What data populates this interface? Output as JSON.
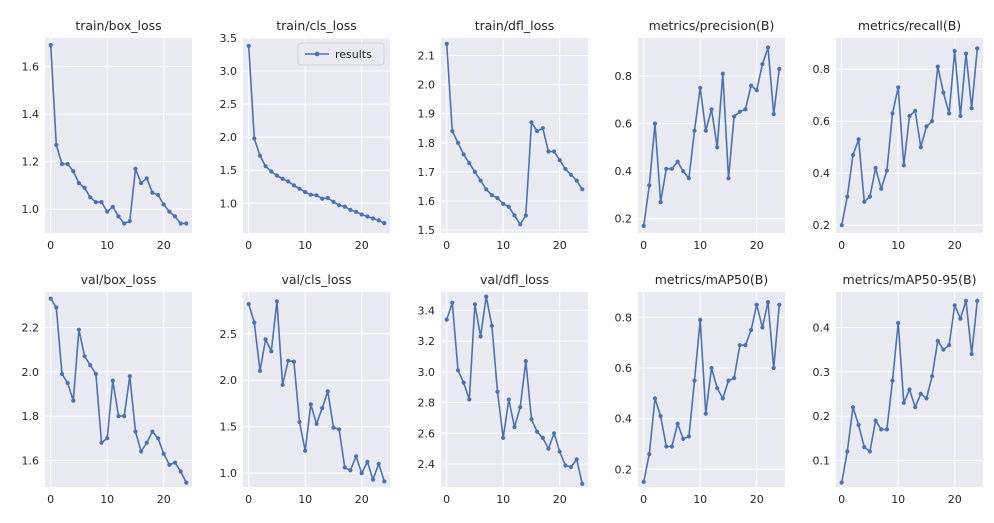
{
  "colors": {
    "series": "#4c72b0",
    "background": "#eaeaf2",
    "grid": "#ffffff"
  },
  "legend": {
    "label": "results",
    "placement": "upper-right",
    "panel": 1
  },
  "chart_data": [
    {
      "type": "line",
      "title": "train/box_loss",
      "xlim": [
        -1,
        25
      ],
      "ylim": [
        0.9,
        1.72
      ],
      "xticks": [
        0,
        10,
        20
      ],
      "yticks": [
        1.0,
        1.2,
        1.4,
        1.6
      ],
      "ytick_labels": [
        "1.0",
        "1.2",
        "1.4",
        "1.6"
      ],
      "series": [
        {
          "name": "results",
          "x": [
            0,
            1,
            2,
            3,
            4,
            5,
            6,
            7,
            8,
            9,
            10,
            11,
            12,
            13,
            14,
            15,
            16,
            17,
            18,
            19,
            20,
            21,
            22,
            23,
            24
          ],
          "values": [
            1.69,
            1.27,
            1.19,
            1.19,
            1.16,
            1.11,
            1.09,
            1.05,
            1.03,
            1.03,
            0.99,
            1.01,
            0.97,
            0.94,
            0.95,
            1.17,
            1.11,
            1.13,
            1.07,
            1.06,
            1.02,
            0.99,
            0.97,
            0.94,
            0.94
          ]
        }
      ]
    },
    {
      "type": "line",
      "title": "train/cls_loss",
      "xlim": [
        -1,
        25
      ],
      "ylim": [
        0.55,
        3.5
      ],
      "xticks": [
        0,
        10,
        20
      ],
      "yticks": [
        1.0,
        1.5,
        2.0,
        2.5,
        3.0,
        3.5
      ],
      "ytick_labels": [
        "1.0",
        "1.5",
        "2.0",
        "2.5",
        "3.0",
        "3.5"
      ],
      "series": [
        {
          "name": "results",
          "x": [
            0,
            1,
            2,
            3,
            4,
            5,
            6,
            7,
            8,
            9,
            10,
            11,
            12,
            13,
            14,
            15,
            16,
            17,
            18,
            19,
            20,
            21,
            22,
            23,
            24
          ],
          "values": [
            3.38,
            1.98,
            1.72,
            1.56,
            1.48,
            1.42,
            1.37,
            1.33,
            1.27,
            1.22,
            1.17,
            1.13,
            1.12,
            1.07,
            1.08,
            1.02,
            0.97,
            0.95,
            0.9,
            0.87,
            0.83,
            0.8,
            0.77,
            0.74,
            0.7
          ]
        }
      ]
    },
    {
      "type": "line",
      "title": "train/dfl_loss",
      "xlim": [
        -1,
        25
      ],
      "ylim": [
        1.49,
        2.16
      ],
      "xticks": [
        0,
        10,
        20
      ],
      "yticks": [
        1.5,
        1.6,
        1.7,
        1.8,
        1.9,
        2.0,
        2.1
      ],
      "ytick_labels": [
        "1.5",
        "1.6",
        "1.7",
        "1.8",
        "1.9",
        "2.0",
        "2.1"
      ],
      "series": [
        {
          "name": "results",
          "x": [
            0,
            1,
            2,
            3,
            4,
            5,
            6,
            7,
            8,
            9,
            10,
            11,
            12,
            13,
            14,
            15,
            16,
            17,
            18,
            19,
            20,
            21,
            22,
            23,
            24
          ],
          "values": [
            2.14,
            1.84,
            1.8,
            1.76,
            1.73,
            1.7,
            1.67,
            1.64,
            1.62,
            1.61,
            1.59,
            1.58,
            1.55,
            1.52,
            1.55,
            1.87,
            1.84,
            1.85,
            1.77,
            1.77,
            1.74,
            1.71,
            1.69,
            1.67,
            1.64
          ]
        }
      ]
    },
    {
      "type": "line",
      "title": "metrics/precision(B)",
      "xlim": [
        -1,
        25
      ],
      "ylim": [
        0.14,
        0.96
      ],
      "xticks": [
        0,
        10,
        20
      ],
      "yticks": [
        0.2,
        0.4,
        0.6,
        0.8
      ],
      "ytick_labels": [
        "0.2",
        "0.4",
        "0.6",
        "0.8"
      ],
      "series": [
        {
          "name": "results",
          "x": [
            0,
            1,
            2,
            3,
            4,
            5,
            6,
            7,
            8,
            9,
            10,
            11,
            12,
            13,
            14,
            15,
            16,
            17,
            18,
            19,
            20,
            21,
            22,
            23,
            24
          ],
          "values": [
            0.17,
            0.34,
            0.6,
            0.27,
            0.41,
            0.41,
            0.44,
            0.4,
            0.37,
            0.57,
            0.75,
            0.57,
            0.66,
            0.5,
            0.81,
            0.37,
            0.63,
            0.65,
            0.66,
            0.76,
            0.74,
            0.85,
            0.92,
            0.64,
            0.83
          ]
        }
      ]
    },
    {
      "type": "line",
      "title": "metrics/recall(B)",
      "xlim": [
        -1,
        25
      ],
      "ylim": [
        0.17,
        0.92
      ],
      "xticks": [
        0,
        10,
        20
      ],
      "yticks": [
        0.2,
        0.4,
        0.6,
        0.8
      ],
      "ytick_labels": [
        "0.2",
        "0.4",
        "0.6",
        "0.8"
      ],
      "series": [
        {
          "name": "results",
          "x": [
            0,
            1,
            2,
            3,
            4,
            5,
            6,
            7,
            8,
            9,
            10,
            11,
            12,
            13,
            14,
            15,
            16,
            17,
            18,
            19,
            20,
            21,
            22,
            23,
            24
          ],
          "values": [
            0.2,
            0.31,
            0.47,
            0.53,
            0.29,
            0.31,
            0.42,
            0.34,
            0.41,
            0.63,
            0.73,
            0.43,
            0.62,
            0.64,
            0.5,
            0.58,
            0.6,
            0.81,
            0.71,
            0.63,
            0.87,
            0.62,
            0.86,
            0.65,
            0.88
          ]
        }
      ]
    },
    {
      "type": "line",
      "title": "val/box_loss",
      "xlim": [
        -1,
        25
      ],
      "ylim": [
        1.48,
        2.36
      ],
      "xticks": [
        0,
        10,
        20
      ],
      "yticks": [
        1.6,
        1.8,
        2.0,
        2.2
      ],
      "ytick_labels": [
        "1.6",
        "1.8",
        "2.0",
        "2.2"
      ],
      "series": [
        {
          "name": "results",
          "x": [
            0,
            1,
            2,
            3,
            4,
            5,
            6,
            7,
            8,
            9,
            10,
            11,
            12,
            13,
            14,
            15,
            16,
            17,
            18,
            19,
            20,
            21,
            22,
            23,
            24
          ],
          "values": [
            2.33,
            2.29,
            1.99,
            1.95,
            1.87,
            2.19,
            2.07,
            2.03,
            1.99,
            1.68,
            1.7,
            1.96,
            1.8,
            1.8,
            1.98,
            1.73,
            1.64,
            1.68,
            1.73,
            1.7,
            1.63,
            1.58,
            1.59,
            1.55,
            1.5
          ]
        }
      ]
    },
    {
      "type": "line",
      "title": "val/cls_loss",
      "xlim": [
        -1,
        25
      ],
      "ylim": [
        0.85,
        2.95
      ],
      "xticks": [
        0,
        10,
        20
      ],
      "yticks": [
        1.0,
        1.5,
        2.0,
        2.5
      ],
      "ytick_labels": [
        "1.0",
        "1.5",
        "2.0",
        "2.5"
      ],
      "series": [
        {
          "name": "results",
          "x": [
            0,
            1,
            2,
            3,
            4,
            5,
            6,
            7,
            8,
            9,
            10,
            11,
            12,
            13,
            14,
            15,
            16,
            17,
            18,
            19,
            20,
            21,
            22,
            23,
            24
          ],
          "values": [
            2.82,
            2.62,
            2.1,
            2.44,
            2.31,
            2.85,
            1.95,
            2.21,
            2.2,
            1.55,
            1.24,
            1.74,
            1.53,
            1.7,
            1.88,
            1.49,
            1.47,
            1.06,
            1.03,
            1.18,
            1.0,
            1.12,
            0.93,
            1.1,
            0.91
          ]
        }
      ]
    },
    {
      "type": "line",
      "title": "val/dfl_loss",
      "xlim": [
        -1,
        25
      ],
      "ylim": [
        2.25,
        3.52
      ],
      "xticks": [
        0,
        10,
        20
      ],
      "yticks": [
        2.4,
        2.6,
        2.8,
        3.0,
        3.2,
        3.4
      ],
      "ytick_labels": [
        "2.4",
        "2.6",
        "2.8",
        "3.0",
        "3.2",
        "3.4"
      ],
      "series": [
        {
          "name": "results",
          "x": [
            0,
            1,
            2,
            3,
            4,
            5,
            6,
            7,
            8,
            9,
            10,
            11,
            12,
            13,
            14,
            15,
            16,
            17,
            18,
            19,
            20,
            21,
            22,
            23,
            24
          ],
          "values": [
            3.34,
            3.45,
            3.01,
            2.93,
            2.82,
            3.44,
            3.23,
            3.49,
            3.3,
            2.87,
            2.57,
            2.82,
            2.64,
            2.77,
            3.07,
            2.69,
            2.61,
            2.57,
            2.5,
            2.6,
            2.48,
            2.39,
            2.38,
            2.43,
            2.27
          ]
        }
      ]
    },
    {
      "type": "line",
      "title": "metrics/mAP50(B)",
      "xlim": [
        -1,
        25
      ],
      "ylim": [
        0.13,
        0.9
      ],
      "xticks": [
        0,
        10,
        20
      ],
      "yticks": [
        0.2,
        0.4,
        0.6,
        0.8
      ],
      "ytick_labels": [
        "0.2",
        "0.4",
        "0.6",
        "0.8"
      ],
      "series": [
        {
          "name": "results",
          "x": [
            0,
            1,
            2,
            3,
            4,
            5,
            6,
            7,
            8,
            9,
            10,
            11,
            12,
            13,
            14,
            15,
            16,
            17,
            18,
            19,
            20,
            21,
            22,
            23,
            24
          ],
          "values": [
            0.15,
            0.26,
            0.48,
            0.41,
            0.29,
            0.29,
            0.38,
            0.32,
            0.33,
            0.55,
            0.79,
            0.42,
            0.6,
            0.52,
            0.48,
            0.55,
            0.56,
            0.69,
            0.69,
            0.75,
            0.85,
            0.76,
            0.86,
            0.6,
            0.85
          ]
        }
      ]
    },
    {
      "type": "line",
      "title": "metrics/mAP50-95(B)",
      "xlim": [
        -1,
        25
      ],
      "ylim": [
        0.04,
        0.48
      ],
      "xticks": [
        0,
        10,
        20
      ],
      "yticks": [
        0.1,
        0.2,
        0.3,
        0.4
      ],
      "ytick_labels": [
        "0.1",
        "0.2",
        "0.3",
        "0.4"
      ],
      "series": [
        {
          "name": "results",
          "x": [
            0,
            1,
            2,
            3,
            4,
            5,
            6,
            7,
            8,
            9,
            10,
            11,
            12,
            13,
            14,
            15,
            16,
            17,
            18,
            19,
            20,
            21,
            22,
            23,
            24
          ],
          "values": [
            0.05,
            0.12,
            0.22,
            0.18,
            0.13,
            0.12,
            0.19,
            0.17,
            0.17,
            0.28,
            0.41,
            0.23,
            0.26,
            0.22,
            0.25,
            0.24,
            0.29,
            0.37,
            0.35,
            0.36,
            0.45,
            0.42,
            0.46,
            0.34,
            0.46
          ]
        }
      ]
    }
  ]
}
